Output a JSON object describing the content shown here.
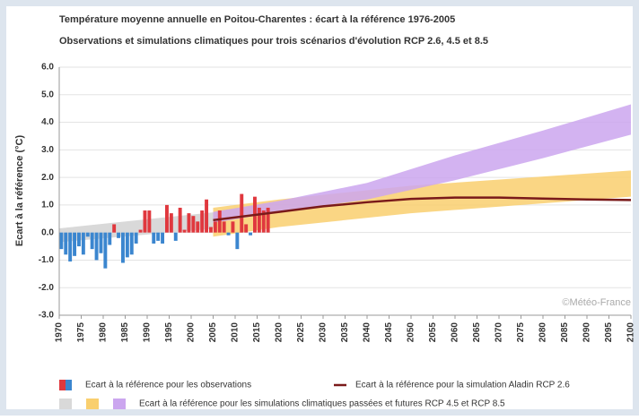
{
  "chart_data": {
    "type": "bar_band_line",
    "title": "Température moyenne annuelle en Poitou-Charentes : écart à la référence 1976-2005",
    "subtitle": "Observations et simulations climatiques pour trois scénarios d'évolution RCP 2.6, 4.5 et 8.5",
    "y_label": "Ecart à la référence (°C)",
    "annotation": "©Météo-France",
    "xlim": [
      1970,
      2100
    ],
    "xticks": [
      1970,
      1975,
      1980,
      1985,
      1990,
      1995,
      2000,
      2005,
      2010,
      2015,
      2020,
      2025,
      2030,
      2035,
      2040,
      2045,
      2050,
      2055,
      2060,
      2065,
      2070,
      2075,
      2080,
      2085,
      2090,
      2095,
      2100
    ],
    "ylim": [
      -3,
      6
    ],
    "yticks": [
      {
        "value": -3,
        "label": "-3.0"
      },
      {
        "value": -2,
        "label": "-2.0"
      },
      {
        "value": -1,
        "label": "-1.0"
      },
      {
        "value": 0,
        "label": "0.0"
      },
      {
        "value": 1,
        "label": "1.0"
      },
      {
        "value": 2,
        "label": "2.0"
      },
      {
        "value": 3,
        "label": "3.0"
      },
      {
        "value": 4,
        "label": "4.0"
      },
      {
        "value": 5,
        "label": "5.0"
      },
      {
        "value": 6,
        "label": "6.0"
      }
    ],
    "grid": true,
    "observations": {
      "name": "Ecart à la référence pour les observations",
      "positive_color": "#e0383e",
      "negative_color": "#3b86cf",
      "x": [
        1970,
        1971,
        1972,
        1973,
        1974,
        1975,
        1976,
        1977,
        1978,
        1979,
        1980,
        1981,
        1982,
        1983,
        1984,
        1985,
        1986,
        1987,
        1988,
        1989,
        1990,
        1991,
        1992,
        1993,
        1994,
        1995,
        1996,
        1997,
        1998,
        1999,
        2000,
        2001,
        2002,
        2003,
        2004,
        2005,
        2006,
        2007,
        2008,
        2009,
        2010,
        2011,
        2012,
        2013,
        2014,
        2015,
        2016,
        2017
      ],
      "values": [
        -0.6,
        -0.8,
        -1.05,
        -0.85,
        -0.5,
        -0.8,
        -0.15,
        -0.6,
        -1.0,
        -0.75,
        -1.3,
        -0.45,
        0.3,
        -0.2,
        -1.1,
        -0.9,
        -0.8,
        -0.4,
        0.1,
        0.8,
        0.8,
        -0.4,
        -0.3,
        -0.4,
        1.0,
        0.7,
        -0.3,
        0.9,
        0.1,
        0.7,
        0.6,
        0.4,
        0.8,
        1.2,
        0.2,
        0.4,
        0.8,
        0.4,
        -0.1,
        0.4,
        -0.6,
        1.4,
        0.3,
        -0.1,
        1.3,
        0.9,
        0.8,
        0.9
      ]
    },
    "bands": {
      "name": "Ecart à la référence pour les simulations climatiques passées et futures RCP 4.5 et RCP 8.5",
      "items": [
        {
          "color": "#d9d9d9",
          "x": [
            1970,
            2006
          ],
          "low": [
            -0.35,
            0.15
          ],
          "high": [
            0.15,
            0.75
          ]
        },
        {
          "color": "#f9cf6e",
          "x": [
            2005,
            2020,
            2050,
            2100
          ],
          "low": [
            -0.15,
            0.2,
            0.7,
            1.3
          ],
          "high": [
            0.9,
            1.2,
            1.7,
            2.25
          ]
        },
        {
          "color": "#cba6ef",
          "x": [
            2005,
            2020,
            2040,
            2060,
            2080,
            2100
          ],
          "low": [
            0.35,
            0.75,
            1.2,
            1.9,
            2.7,
            3.55
          ],
          "high": [
            0.75,
            1.15,
            1.8,
            2.8,
            3.7,
            4.65
          ]
        }
      ]
    },
    "line": {
      "name": "Ecart à la référence pour la simulation Aladin RCP 2.6",
      "color": "#7a1a1a",
      "x": [
        2005,
        2020,
        2030,
        2040,
        2050,
        2060,
        2070,
        2080,
        2090,
        2100
      ],
      "values": [
        0.45,
        0.75,
        0.95,
        1.1,
        1.22,
        1.27,
        1.27,
        1.23,
        1.2,
        1.18
      ]
    }
  }
}
